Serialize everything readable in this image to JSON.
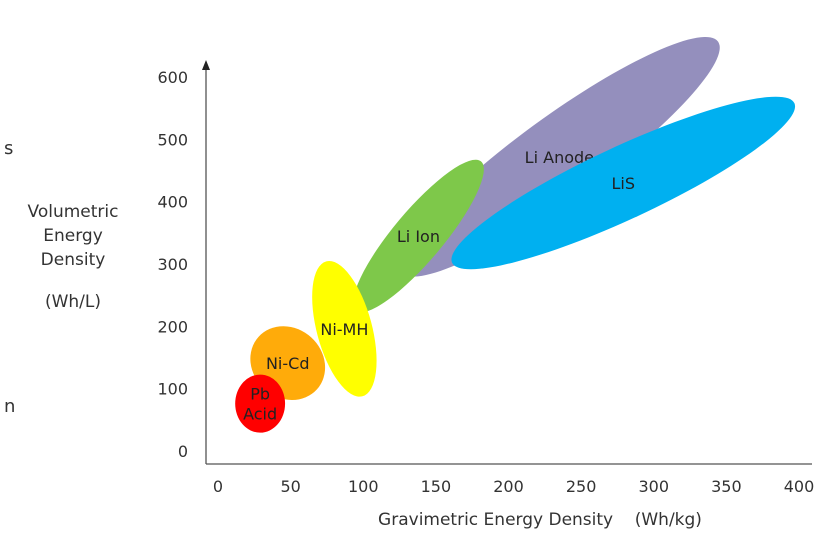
{
  "chart_data": {
    "type": "scatter",
    "xlabel": "Gravimetric Energy Density    (Wh/kg)",
    "ylabel_lines": [
      "Volumetric",
      "Energy",
      "Density",
      "(Wh/L)"
    ],
    "xticks": [
      "0",
      "50",
      "100",
      "150",
      "200",
      "250",
      "300",
      "350",
      "400"
    ],
    "yticks": [
      "0",
      "100",
      "200",
      "300",
      "400",
      "500",
      "600"
    ],
    "xlim": [
      0,
      400
    ],
    "ylim": [
      0,
      600
    ],
    "grid": false,
    "edge_fragments": [
      "s",
      "n"
    ],
    "regions": [
      {
        "label_lines": [
          "Li Anode"
        ],
        "color": "#948fbd",
        "cx": 235,
        "cy": 472,
        "rx": 135,
        "ry": 65,
        "angle": 36
      },
      {
        "label_lines": [
          "LiS"
        ],
        "color": "#00b0f0",
        "cx": 279,
        "cy": 430,
        "rx": 130,
        "ry": 58,
        "angle": 25
      },
      {
        "label_lines": [
          "Li Ion"
        ],
        "color": "#7ec84a",
        "cx": 138,
        "cy": 345,
        "rx": 67,
        "ry": 40,
        "angle": 50
      },
      {
        "label_lines": [
          "Ni-MH"
        ],
        "color": "#ffff00",
        "cx": 87,
        "cy": 196,
        "rx": 19,
        "ry": 112,
        "angle": 15
      },
      {
        "label_lines": [
          "Ni-Cd"
        ],
        "color": "#ffab0a",
        "cx": 48,
        "cy": 141,
        "rx": 24,
        "ry": 63,
        "angle": 48
      },
      {
        "label_lines": [
          "Pb",
          "Acid"
        ],
        "color": "#ff0000",
        "cx": 29,
        "cy": 76,
        "rx": 20,
        "ry": 40,
        "angle": 90
      }
    ]
  }
}
